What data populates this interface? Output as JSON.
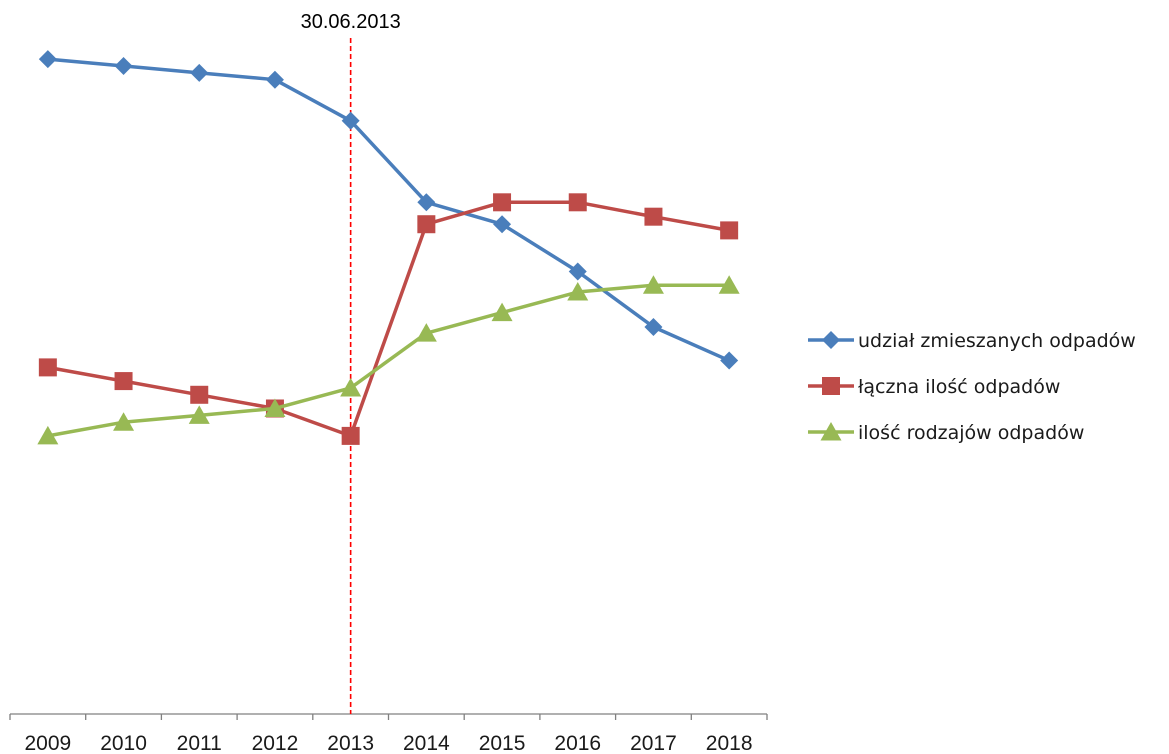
{
  "chart_data": {
    "type": "line",
    "categories": [
      "2009",
      "2010",
      "2011",
      "2012",
      "2013",
      "2014",
      "2015",
      "2016",
      "2017",
      "2018"
    ],
    "ylim": [
      0,
      100
    ],
    "y_axis_visible": false,
    "grid": false,
    "legend_position": "right",
    "series": [
      {
        "name": "udział zmieszanych odpadów",
        "marker": "diamond",
        "color": "#4a7ebb",
        "values": [
          95.6,
          94.6,
          93.6,
          92.6,
          86.6,
          74.7,
          71.5,
          64.6,
          56.5,
          51.6
        ]
      },
      {
        "name": "łączna ilość odpadów",
        "marker": "square",
        "color": "#be4b48",
        "values": [
          50.6,
          48.6,
          46.6,
          44.6,
          40.6,
          71.5,
          74.7,
          74.7,
          72.6,
          70.6
        ]
      },
      {
        "name": "ilość rodzajów odpadów",
        "marker": "triangle",
        "color": "#98b954",
        "values": [
          40.6,
          42.6,
          43.6,
          44.6,
          47.6,
          55.6,
          58.6,
          61.6,
          62.6,
          62.6
        ]
      }
    ],
    "annotations": [
      {
        "text": "30.06.2013",
        "x_category": "2013",
        "style": "dashed-vertical-line",
        "color": "#ff0000"
      }
    ]
  }
}
